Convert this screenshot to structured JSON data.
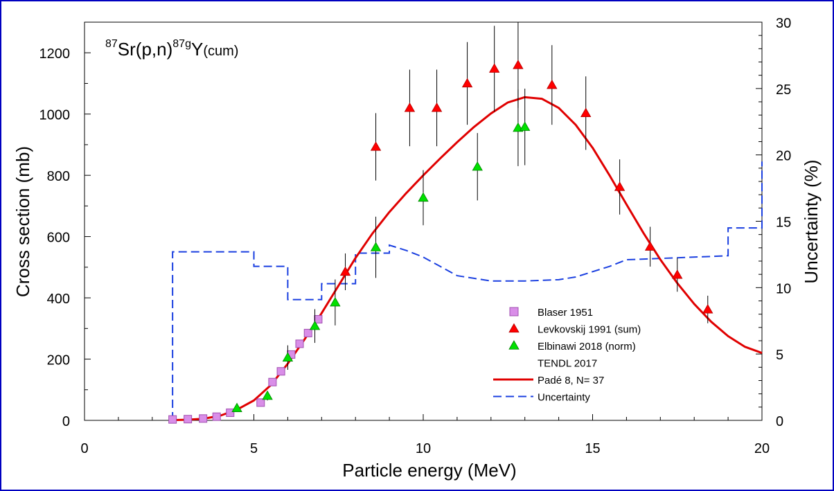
{
  "chart_data": {
    "type": "scatter",
    "title_parts": {
      "mass1": "87",
      "base1": "Sr(p,n)",
      "mass2": "87g",
      "base2": "Y",
      "sub": "(cum)"
    },
    "xlabel": "Particle energy (MeV)",
    "ylabel": "Cross section (mb)",
    "y2label": "Uncertainty (%)",
    "xlim": [
      0,
      20
    ],
    "ylim": [
      0,
      1300
    ],
    "y2lim": [
      0,
      30
    ],
    "xticks": [
      0,
      5,
      10,
      15,
      20
    ],
    "yticks": [
      0,
      200,
      400,
      600,
      800,
      1000,
      1200
    ],
    "y2ticks": [
      0,
      5,
      10,
      15,
      20,
      25,
      30
    ],
    "colors": {
      "blaser_fill": "#d98ee8",
      "blaser_edge": "#a050b0",
      "levkovskij": "#ff0000",
      "elbinawi": "#00e000",
      "pade": "#e00000",
      "uncertainty": "#1a3fe0",
      "frame": "#0000c0"
    },
    "series": [
      {
        "name": "Blaser 1951",
        "marker": "square",
        "points": [
          {
            "x": 2.6,
            "y": 3
          },
          {
            "x": 3.05,
            "y": 4
          },
          {
            "x": 3.5,
            "y": 6
          },
          {
            "x": 3.9,
            "y": 12
          },
          {
            "x": 4.3,
            "y": 25
          },
          {
            "x": 5.2,
            "y": 58
          },
          {
            "x": 5.55,
            "y": 125
          },
          {
            "x": 5.8,
            "y": 160
          },
          {
            "x": 6.1,
            "y": 215
          },
          {
            "x": 6.35,
            "y": 250
          },
          {
            "x": 6.6,
            "y": 285
          },
          {
            "x": 6.9,
            "y": 330
          }
        ]
      },
      {
        "name": "Levkovskij 1991 (sum)",
        "marker": "triangle",
        "points": [
          {
            "x": 7.7,
            "y": 485,
            "err": 60
          },
          {
            "x": 8.6,
            "y": 893,
            "err": 110
          },
          {
            "x": 9.6,
            "y": 1020,
            "err": 125
          },
          {
            "x": 10.4,
            "y": 1020,
            "err": 125
          },
          {
            "x": 11.3,
            "y": 1100,
            "err": 135
          },
          {
            "x": 12.1,
            "y": 1148,
            "err": 140
          },
          {
            "x": 12.8,
            "y": 1160,
            "err": 140
          },
          {
            "x": 13.8,
            "y": 1095,
            "err": 130
          },
          {
            "x": 14.8,
            "y": 1003,
            "err": 120
          },
          {
            "x": 15.8,
            "y": 762,
            "err": 90
          },
          {
            "x": 16.7,
            "y": 567,
            "err": 65
          },
          {
            "x": 17.5,
            "y": 475,
            "err": 55
          },
          {
            "x": 18.4,
            "y": 362,
            "err": 45
          }
        ]
      },
      {
        "name": "Elbinawi 2018 (norm)",
        "marker": "triangle",
        "points": [
          {
            "x": 4.5,
            "y": 40,
            "err": 10
          },
          {
            "x": 5.4,
            "y": 80,
            "err": 15
          },
          {
            "x": 6.0,
            "y": 205,
            "err": 40
          },
          {
            "x": 6.8,
            "y": 308,
            "err": 55
          },
          {
            "x": 7.4,
            "y": 385,
            "err": 75
          },
          {
            "x": 8.6,
            "y": 565,
            "err": 100
          },
          {
            "x": 10.0,
            "y": 727,
            "err": 90
          },
          {
            "x": 11.6,
            "y": 828,
            "err": 110
          },
          {
            "x": 12.8,
            "y": 955,
            "err": 125
          },
          {
            "x": 13.0,
            "y": 958,
            "err": 125
          }
        ]
      },
      {
        "name": "TENDL 2017",
        "marker": "none",
        "points": []
      },
      {
        "name": "Padé 8, N= 37",
        "marker": "line",
        "points": [
          {
            "x": 2.6,
            "y": 1
          },
          {
            "x": 3.0,
            "y": 2
          },
          {
            "x": 3.5,
            "y": 5
          },
          {
            "x": 4.0,
            "y": 15
          },
          {
            "x": 4.5,
            "y": 35
          },
          {
            "x": 5.0,
            "y": 65
          },
          {
            "x": 5.5,
            "y": 115
          },
          {
            "x": 6.0,
            "y": 185
          },
          {
            "x": 6.5,
            "y": 265
          },
          {
            "x": 7.0,
            "y": 350
          },
          {
            "x": 7.5,
            "y": 440
          },
          {
            "x": 8.0,
            "y": 530
          },
          {
            "x": 8.5,
            "y": 610
          },
          {
            "x": 9.0,
            "y": 680
          },
          {
            "x": 9.5,
            "y": 742
          },
          {
            "x": 10.0,
            "y": 800
          },
          {
            "x": 10.5,
            "y": 855
          },
          {
            "x": 11.0,
            "y": 908
          },
          {
            "x": 11.5,
            "y": 958
          },
          {
            "x": 12.0,
            "y": 1002
          },
          {
            "x": 12.5,
            "y": 1038
          },
          {
            "x": 13.0,
            "y": 1055
          },
          {
            "x": 13.5,
            "y": 1050
          },
          {
            "x": 14.0,
            "y": 1020
          },
          {
            "x": 14.5,
            "y": 965
          },
          {
            "x": 15.0,
            "y": 890
          },
          {
            "x": 15.5,
            "y": 800
          },
          {
            "x": 16.0,
            "y": 705
          },
          {
            "x": 16.5,
            "y": 612
          },
          {
            "x": 17.0,
            "y": 525
          },
          {
            "x": 17.5,
            "y": 448
          },
          {
            "x": 18.0,
            "y": 380
          },
          {
            "x": 18.5,
            "y": 322
          },
          {
            "x": 19.0,
            "y": 275
          },
          {
            "x": 19.5,
            "y": 240
          },
          {
            "x": 20.0,
            "y": 220
          }
        ]
      },
      {
        "name": "Uncertainty",
        "marker": "dashed",
        "axis": "right",
        "points": [
          {
            "x": 2.6,
            "y": 0
          },
          {
            "x": 2.6,
            "y": 12.7
          },
          {
            "x": 5.0,
            "y": 12.7
          },
          {
            "x": 5.0,
            "y": 11.6
          },
          {
            "x": 6.0,
            "y": 11.6
          },
          {
            "x": 6.0,
            "y": 9.1
          },
          {
            "x": 7.0,
            "y": 9.1
          },
          {
            "x": 7.0,
            "y": 10.3
          },
          {
            "x": 8.0,
            "y": 10.3
          },
          {
            "x": 8.0,
            "y": 12.6
          },
          {
            "x": 9.0,
            "y": 12.6
          },
          {
            "x": 9.0,
            "y": 13.2
          },
          {
            "x": 9.5,
            "y": 12.8
          },
          {
            "x": 10.0,
            "y": 12.3
          },
          {
            "x": 10.5,
            "y": 11.6
          },
          {
            "x": 11.0,
            "y": 10.9
          },
          {
            "x": 11.5,
            "y": 10.7
          },
          {
            "x": 12.0,
            "y": 10.5
          },
          {
            "x": 13.0,
            "y": 10.5
          },
          {
            "x": 14.0,
            "y": 10.6
          },
          {
            "x": 14.5,
            "y": 10.8
          },
          {
            "x": 15.0,
            "y": 11.2
          },
          {
            "x": 15.5,
            "y": 11.6
          },
          {
            "x": 16.0,
            "y": 12.1
          },
          {
            "x": 17.0,
            "y": 12.2
          },
          {
            "x": 19.0,
            "y": 12.4
          },
          {
            "x": 19.0,
            "y": 14.5
          },
          {
            "x": 20.0,
            "y": 14.5
          },
          {
            "x": 20.0,
            "y": 19.5
          }
        ]
      }
    ]
  }
}
